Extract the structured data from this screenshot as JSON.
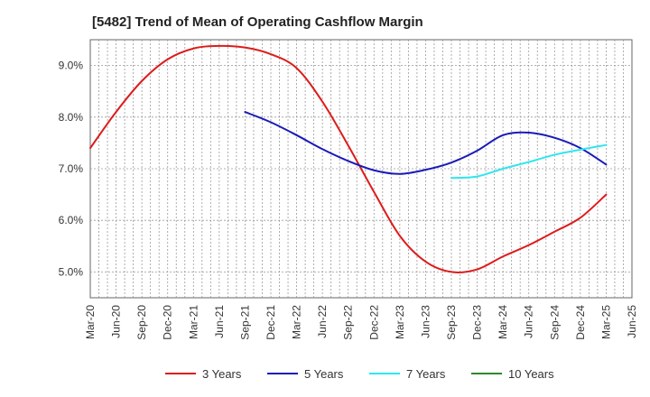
{
  "chart_data": {
    "type": "line",
    "title": "[5482]  Trend of Mean of Operating Cashflow Margin",
    "xlabel": "",
    "ylabel": "",
    "ylim": [
      4.5,
      9.5
    ],
    "grid": true,
    "legend_position": "bottom",
    "x_ticks": [
      "Mar-20",
      "Jun-20",
      "Sep-20",
      "Dec-20",
      "Mar-21",
      "Jun-21",
      "Sep-21",
      "Dec-21",
      "Mar-22",
      "Jun-22",
      "Sep-22",
      "Dec-22",
      "Mar-23",
      "Jun-23",
      "Sep-23",
      "Dec-23",
      "Mar-24",
      "Jun-24",
      "Sep-24",
      "Dec-24",
      "Mar-25",
      "Jun-25"
    ],
    "y_ticks": [
      {
        "value": 5,
        "label": "5.0%"
      },
      {
        "value": 6,
        "label": "6.0%"
      },
      {
        "value": 7,
        "label": "7.0%"
      },
      {
        "value": 8,
        "label": "8.0%"
      },
      {
        "value": 9,
        "label": "9.0%"
      }
    ],
    "series": [
      {
        "name": "3 Years",
        "color": "#dd1c1c",
        "points": [
          [
            "Mar-20",
            7.4
          ],
          [
            "Jun-20",
            8.1
          ],
          [
            "Sep-20",
            8.7
          ],
          [
            "Dec-20",
            9.12
          ],
          [
            "Mar-21",
            9.33
          ],
          [
            "Jun-21",
            9.38
          ],
          [
            "Sep-21",
            9.35
          ],
          [
            "Dec-21",
            9.22
          ],
          [
            "Mar-22",
            8.95
          ],
          [
            "Jun-22",
            8.3
          ],
          [
            "Sep-22",
            7.45
          ],
          [
            "Dec-22",
            6.55
          ],
          [
            "Mar-23",
            5.7
          ],
          [
            "Jun-23",
            5.2
          ],
          [
            "Sep-23",
            5.0
          ],
          [
            "Dec-23",
            5.05
          ],
          [
            "Mar-24",
            5.3
          ],
          [
            "Jun-24",
            5.52
          ],
          [
            "Sep-24",
            5.78
          ],
          [
            "Dec-24",
            6.05
          ],
          [
            "Mar-25",
            6.5
          ]
        ]
      },
      {
        "name": "5 Years",
        "color": "#1a1ab8",
        "points": [
          [
            "Sep-21",
            8.1
          ],
          [
            "Dec-21",
            7.9
          ],
          [
            "Mar-22",
            7.65
          ],
          [
            "Jun-22",
            7.38
          ],
          [
            "Sep-22",
            7.15
          ],
          [
            "Dec-22",
            6.97
          ],
          [
            "Mar-23",
            6.9
          ],
          [
            "Jun-23",
            6.98
          ],
          [
            "Sep-23",
            7.12
          ],
          [
            "Dec-23",
            7.35
          ],
          [
            "Mar-24",
            7.65
          ],
          [
            "Jun-24",
            7.7
          ],
          [
            "Sep-24",
            7.6
          ],
          [
            "Dec-24",
            7.4
          ],
          [
            "Mar-25",
            7.08
          ]
        ]
      },
      {
        "name": "7 Years",
        "color": "#2ee6ee",
        "points": [
          [
            "Sep-23",
            6.82
          ],
          [
            "Dec-23",
            6.85
          ],
          [
            "Mar-24",
            7.0
          ],
          [
            "Jun-24",
            7.13
          ],
          [
            "Sep-24",
            7.27
          ],
          [
            "Dec-24",
            7.37
          ],
          [
            "Mar-25",
            7.46
          ]
        ]
      },
      {
        "name": "10 Years",
        "color": "#2a8a2a",
        "points": []
      }
    ]
  }
}
